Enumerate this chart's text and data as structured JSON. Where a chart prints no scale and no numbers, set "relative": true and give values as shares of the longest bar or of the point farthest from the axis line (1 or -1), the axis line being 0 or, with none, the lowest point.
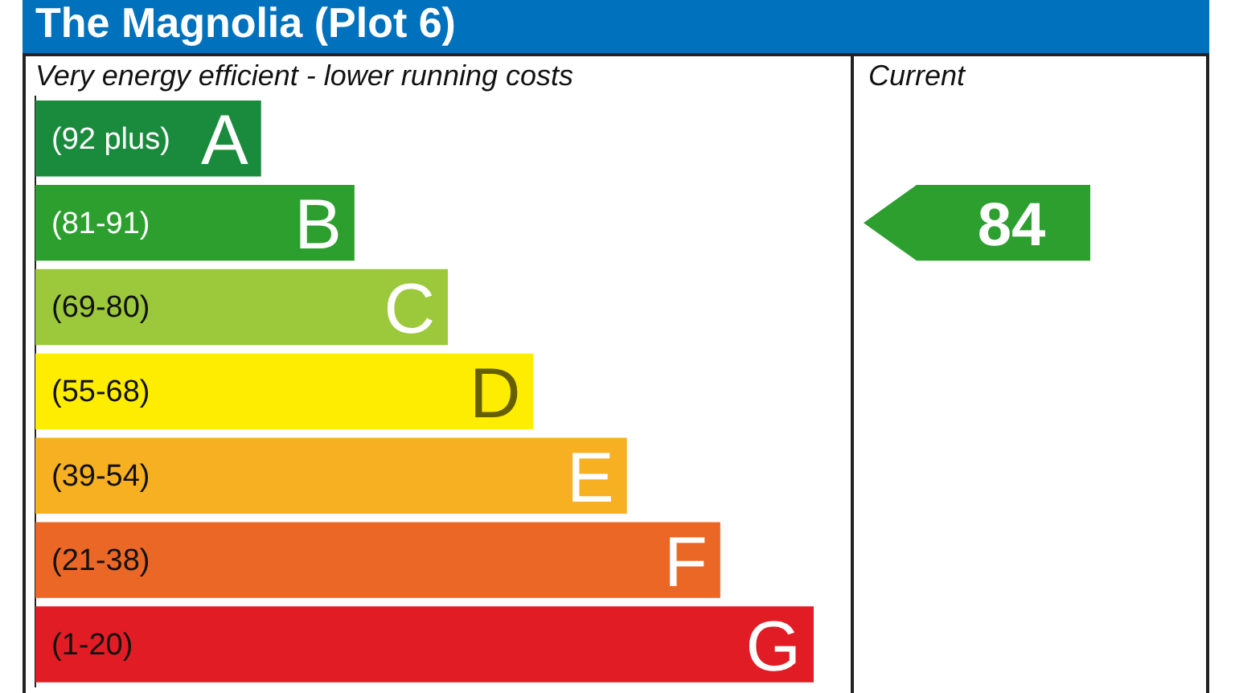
{
  "chart_data": {
    "type": "bar",
    "orientation": "horizontal",
    "relative": true,
    "title": "The Magnolia (Plot 6)",
    "categories": [
      "A",
      "B",
      "C",
      "D",
      "E",
      "F",
      "G"
    ],
    "values": [
      0.29,
      0.41,
      0.53,
      0.64,
      0.76,
      0.88,
      1
    ],
    "colors": [
      "#1a8b3d",
      "#2c9f2f",
      "#9cc93c",
      "#ffed00",
      "#f6b022",
      "#eb6726",
      "#e21c24"
    ],
    "annotations": [
      "Very energy efficient - lower running costs",
      "Current",
      "(92 plus)",
      "(81-91)",
      "(69-80)",
      "(55-68)",
      "(39-54)",
      "(21-38)",
      "(1-20)",
      "84"
    ]
  }
}
